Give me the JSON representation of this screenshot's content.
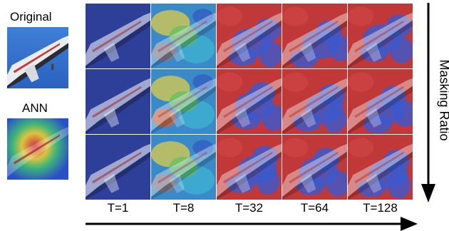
{
  "labels": {
    "original": "Original",
    "ann": "ANN",
    "y_axis": "Masking Ratio"
  },
  "columns": [
    "T=1",
    "T=8",
    "T=32",
    "T=64",
    "T=128"
  ],
  "rows": 3,
  "colors": {
    "sky": "#1f3f8f",
    "red_overlay": "#c83a3a",
    "blue_overlay": "#2a4fc4",
    "arrow": "#000000"
  }
}
